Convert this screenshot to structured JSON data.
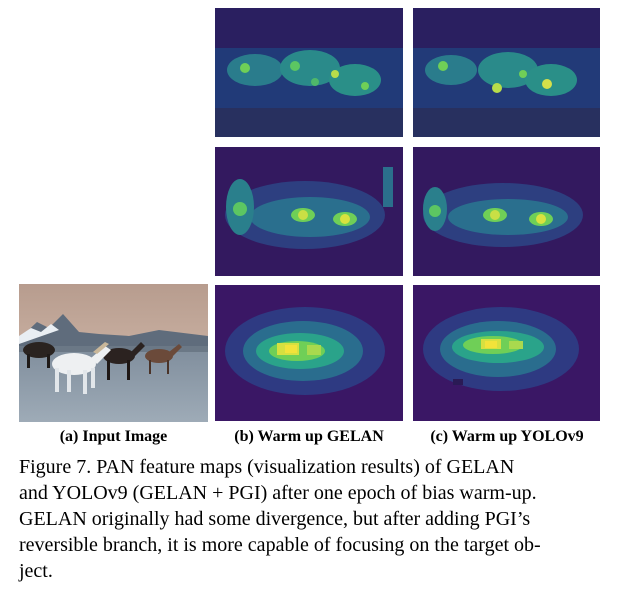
{
  "figure": {
    "sublabels": {
      "a": "(a) Input Image",
      "b": "(b) Warm up GELAN",
      "c": "(c) Warm up YOLOv9"
    },
    "caption": {
      "line1": "Figure 7.  PAN feature maps (visualization results) of GELAN",
      "line2": "and YOLOv9 (GELAN + PGI) after one epoch of bias warm-up.",
      "line3": "GELAN originally had some divergence, but after adding PGI’s",
      "line4": "reversible branch, it is more capable of focusing on the target ob-",
      "line5": "ject."
    }
  },
  "colors": {
    "viridis_dark": "#2b1a5a",
    "viridis_mid": "#2f6f8f",
    "viridis_teal": "#2aa38a",
    "viridis_green": "#6fcf57",
    "viridis_yellow": "#f2e33a"
  }
}
